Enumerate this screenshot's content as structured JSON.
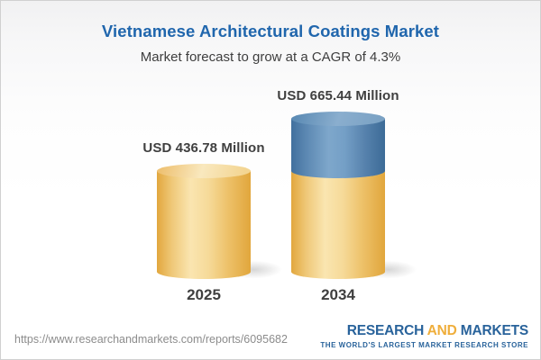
{
  "header": {
    "title": "Vietnamese Architectural Coatings Market",
    "subtitle": "Market forecast to grow at a CAGR of 4.3%"
  },
  "chart_data": {
    "type": "bar",
    "style": "3d-cylinder",
    "title": "Vietnamese Architectural Coatings Market",
    "subtitle": "Market forecast to grow at a CAGR of 4.3%",
    "cagr_pct": 4.3,
    "unit": "USD Million",
    "categories": [
      "2025",
      "2034"
    ],
    "values": [
      436.78,
      665.44
    ],
    "value_labels": [
      "USD 436.78 Million",
      "USD 665.44 Million"
    ],
    "bars": [
      {
        "category": "2025",
        "total": 436.78,
        "label": "USD 436.78 Million",
        "segments": [
          {
            "value": 436.78,
            "color": "yellow"
          }
        ]
      },
      {
        "category": "2034",
        "total": 665.44,
        "label": "USD 665.44 Million",
        "segments": [
          {
            "value": 436.78,
            "color": "yellow"
          },
          {
            "value": 228.66,
            "color": "blue"
          }
        ]
      }
    ],
    "colors": {
      "yellow": "#F3CF86",
      "blue": "#6E9CC4"
    },
    "axes": "none",
    "legend": "none",
    "grid": false
  },
  "footer": {
    "url": "https://www.researchandmarkets.com/reports/6095682",
    "logo": {
      "research": "RESEARCH",
      "and": "AND",
      "markets": "MARKETS",
      "tagline": "THE WORLD'S LARGEST MARKET RESEARCH STORE"
    }
  },
  "colors": {
    "title_blue": "#2066AD",
    "text_dark": "#3F3F3F",
    "url_gray": "#8C8C8C",
    "logo_blue": "#29639B",
    "logo_yellow": "#EFAE3B",
    "border_gray": "#D0D0D0"
  }
}
